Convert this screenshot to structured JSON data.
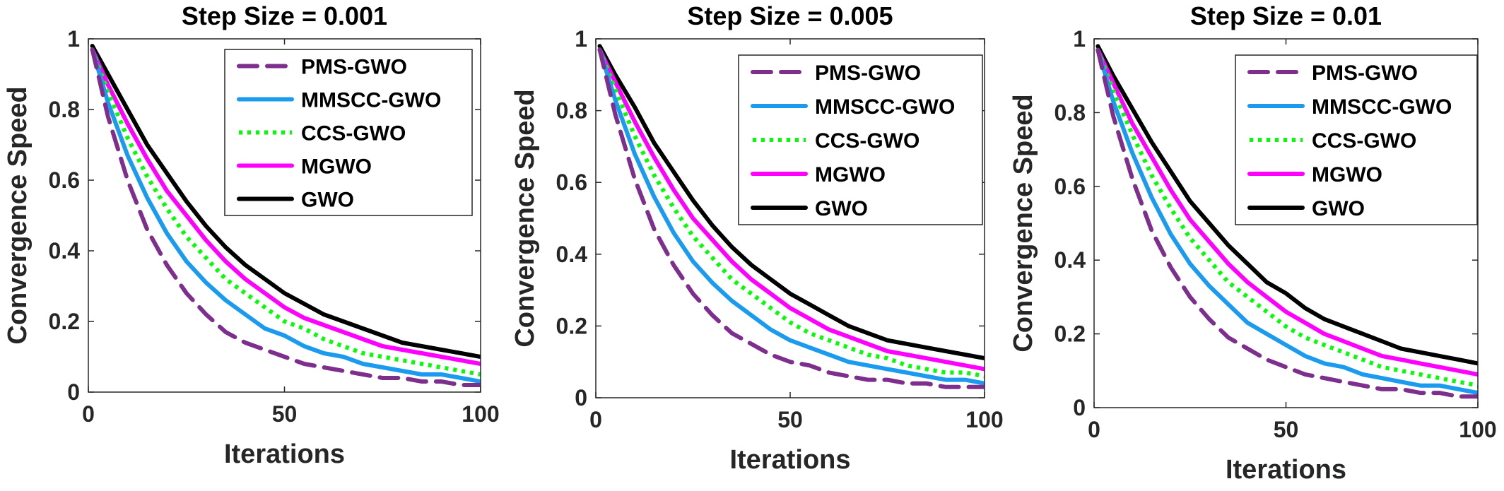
{
  "chart_data": [
    {
      "type": "line",
      "title": "Step Size = 0.001",
      "xlabel": "Iterations",
      "ylabel": "Convergence Speed",
      "xlim": [
        0,
        100
      ],
      "ylim": [
        0,
        1
      ],
      "xticks": [
        "0",
        "50",
        "100"
      ],
      "yticks": [
        "0",
        "0.2",
        "0.4",
        "0.6",
        "0.8",
        "1"
      ],
      "legend_position": "top-right",
      "x": [
        1,
        5,
        10,
        15,
        20,
        25,
        30,
        35,
        40,
        45,
        50,
        55,
        60,
        65,
        70,
        75,
        80,
        85,
        90,
        95,
        100
      ],
      "series": [
        {
          "name": "PMS-GWO",
          "color": "#7E2F8E",
          "style": "dashed",
          "values": [
            0.97,
            0.78,
            0.6,
            0.46,
            0.36,
            0.28,
            0.22,
            0.17,
            0.14,
            0.12,
            0.1,
            0.08,
            0.07,
            0.06,
            0.05,
            0.04,
            0.04,
            0.03,
            0.03,
            0.02,
            0.02
          ]
        },
        {
          "name": "MMSCC-GWO",
          "color": "#1A9BF0",
          "style": "solid",
          "values": [
            0.97,
            0.82,
            0.67,
            0.55,
            0.45,
            0.37,
            0.31,
            0.26,
            0.22,
            0.18,
            0.16,
            0.13,
            0.11,
            0.1,
            0.08,
            0.07,
            0.06,
            0.05,
            0.05,
            0.04,
            0.03
          ]
        },
        {
          "name": "CCS-GWO",
          "color": "#00FF00",
          "style": "dotted",
          "values": [
            0.97,
            0.85,
            0.72,
            0.61,
            0.52,
            0.44,
            0.38,
            0.32,
            0.28,
            0.24,
            0.2,
            0.18,
            0.15,
            0.13,
            0.11,
            0.1,
            0.09,
            0.08,
            0.07,
            0.06,
            0.05
          ]
        },
        {
          "name": "MGWO",
          "color": "#FF00FF",
          "style": "solid",
          "values": [
            0.97,
            0.87,
            0.76,
            0.66,
            0.57,
            0.5,
            0.43,
            0.37,
            0.32,
            0.28,
            0.24,
            0.21,
            0.19,
            0.17,
            0.15,
            0.13,
            0.12,
            0.11,
            0.1,
            0.09,
            0.08
          ]
        },
        {
          "name": "GWO",
          "color": "#000000",
          "style": "solid",
          "values": [
            0.98,
            0.9,
            0.8,
            0.7,
            0.62,
            0.54,
            0.47,
            0.41,
            0.36,
            0.32,
            0.28,
            0.25,
            0.22,
            0.2,
            0.18,
            0.16,
            0.14,
            0.13,
            0.12,
            0.11,
            0.1
          ]
        }
      ]
    },
    {
      "type": "line",
      "title": "Step Size = 0.005",
      "xlabel": "Iterations",
      "ylabel": "Convergence Speed",
      "xlim": [
        0,
        100
      ],
      "ylim": [
        0,
        1
      ],
      "xticks": [
        "0",
        "50",
        "100"
      ],
      "yticks": [
        "0",
        "0.2",
        "0.4",
        "0.6",
        "0.8",
        "1"
      ],
      "legend_position": "top-right",
      "x": [
        1,
        5,
        10,
        15,
        20,
        25,
        30,
        35,
        40,
        45,
        50,
        55,
        60,
        65,
        70,
        75,
        80,
        85,
        90,
        95,
        100
      ],
      "series": [
        {
          "name": "PMS-GWO",
          "color": "#7E2F8E",
          "style": "dashed",
          "values": [
            0.97,
            0.79,
            0.61,
            0.47,
            0.37,
            0.29,
            0.23,
            0.18,
            0.15,
            0.12,
            0.1,
            0.09,
            0.07,
            0.06,
            0.05,
            0.05,
            0.04,
            0.04,
            0.03,
            0.03,
            0.03
          ]
        },
        {
          "name": "MMSCC-GWO",
          "color": "#1A9BF0",
          "style": "solid",
          "values": [
            0.97,
            0.83,
            0.68,
            0.56,
            0.46,
            0.38,
            0.32,
            0.27,
            0.23,
            0.19,
            0.16,
            0.14,
            0.12,
            0.1,
            0.09,
            0.08,
            0.07,
            0.06,
            0.05,
            0.05,
            0.04
          ]
        },
        {
          "name": "CCS-GWO",
          "color": "#00FF00",
          "style": "dotted",
          "values": [
            0.97,
            0.86,
            0.73,
            0.62,
            0.53,
            0.45,
            0.39,
            0.33,
            0.29,
            0.25,
            0.21,
            0.18,
            0.16,
            0.14,
            0.12,
            0.11,
            0.09,
            0.08,
            0.07,
            0.07,
            0.06
          ]
        },
        {
          "name": "MGWO",
          "color": "#FF00FF",
          "style": "solid",
          "values": [
            0.97,
            0.88,
            0.77,
            0.67,
            0.58,
            0.5,
            0.44,
            0.38,
            0.33,
            0.29,
            0.25,
            0.22,
            0.19,
            0.17,
            0.15,
            0.13,
            0.12,
            0.11,
            0.1,
            0.09,
            0.08
          ]
        },
        {
          "name": "GWO",
          "color": "#000000",
          "style": "solid",
          "values": [
            0.98,
            0.9,
            0.81,
            0.71,
            0.63,
            0.55,
            0.48,
            0.42,
            0.37,
            0.33,
            0.29,
            0.26,
            0.23,
            0.2,
            0.18,
            0.16,
            0.15,
            0.14,
            0.13,
            0.12,
            0.11
          ]
        }
      ]
    },
    {
      "type": "line",
      "title": "Step Size = 0.01",
      "xlabel": "Iterations",
      "ylabel": "Convergence Speed",
      "xlim": [
        0,
        100
      ],
      "ylim": [
        0,
        1
      ],
      "xticks": [
        "0",
        "50",
        "100"
      ],
      "yticks": [
        "0",
        "0.2",
        "0.4",
        "0.6",
        "0.8",
        "1"
      ],
      "legend_position": "top-right",
      "x": [
        1,
        5,
        10,
        15,
        20,
        25,
        30,
        35,
        40,
        45,
        50,
        55,
        60,
        65,
        70,
        75,
        80,
        85,
        90,
        95,
        100
      ],
      "series": [
        {
          "name": "PMS-GWO",
          "color": "#7E2F8E",
          "style": "dashed",
          "values": [
            0.97,
            0.79,
            0.62,
            0.48,
            0.38,
            0.3,
            0.24,
            0.19,
            0.16,
            0.13,
            0.11,
            0.09,
            0.08,
            0.07,
            0.06,
            0.05,
            0.05,
            0.04,
            0.04,
            0.03,
            0.03
          ]
        },
        {
          "name": "MMSCC-GWO",
          "color": "#1A9BF0",
          "style": "solid",
          "values": [
            0.97,
            0.83,
            0.69,
            0.57,
            0.47,
            0.39,
            0.33,
            0.28,
            0.23,
            0.2,
            0.17,
            0.14,
            0.12,
            0.11,
            0.09,
            0.08,
            0.07,
            0.06,
            0.06,
            0.05,
            0.04
          ]
        },
        {
          "name": "CCS-GWO",
          "color": "#00FF00",
          "style": "dotted",
          "values": [
            0.97,
            0.86,
            0.74,
            0.63,
            0.54,
            0.46,
            0.4,
            0.34,
            0.3,
            0.26,
            0.22,
            0.19,
            0.17,
            0.15,
            0.13,
            0.11,
            0.1,
            0.09,
            0.08,
            0.07,
            0.06
          ]
        },
        {
          "name": "MGWO",
          "color": "#FF00FF",
          "style": "solid",
          "values": [
            0.97,
            0.88,
            0.77,
            0.68,
            0.59,
            0.51,
            0.45,
            0.39,
            0.34,
            0.3,
            0.26,
            0.23,
            0.2,
            0.18,
            0.16,
            0.14,
            0.13,
            0.12,
            0.11,
            0.1,
            0.09
          ]
        },
        {
          "name": "GWO",
          "color": "#000000",
          "style": "solid",
          "values": [
            0.98,
            0.9,
            0.81,
            0.72,
            0.64,
            0.56,
            0.5,
            0.44,
            0.39,
            0.34,
            0.31,
            0.27,
            0.24,
            0.22,
            0.2,
            0.18,
            0.16,
            0.15,
            0.14,
            0.13,
            0.12
          ]
        }
      ]
    }
  ]
}
